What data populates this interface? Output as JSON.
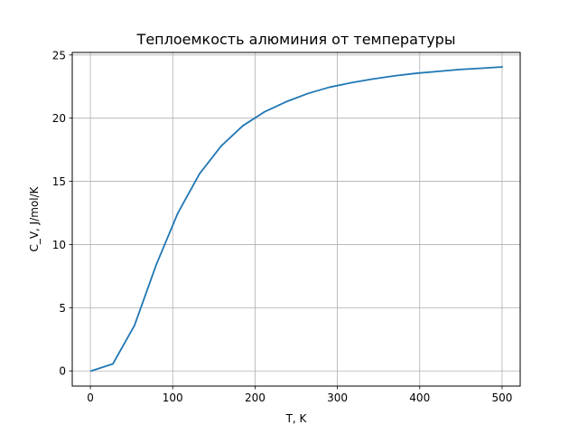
{
  "chart_data": {
    "type": "line",
    "title": "Теплоемкость алюминия от температуры",
    "xlabel": "T, K",
    "ylabel": "C_V, J/mol/K",
    "xlim": [
      -22,
      522
    ],
    "ylim": [
      -1.2,
      25.2
    ],
    "xticks": [
      0,
      100,
      200,
      300,
      400,
      500
    ],
    "yticks": [
      0,
      5,
      10,
      15,
      20,
      25
    ],
    "grid": true,
    "series": [
      {
        "color": "#1f77b4",
        "x": [
          1,
          27.3,
          53.6,
          80,
          106.3,
          132.6,
          158.9,
          185.2,
          211.5,
          237.8,
          264.1,
          290.4,
          316.7,
          343,
          369.3,
          395.6,
          421.9,
          448.2,
          474.5,
          500
        ],
        "y": [
          0.0,
          0.55,
          3.6,
          8.4,
          12.5,
          15.6,
          17.8,
          19.4,
          20.5,
          21.3,
          21.95,
          22.45,
          22.8,
          23.1,
          23.35,
          23.55,
          23.7,
          23.85,
          23.95,
          24.05
        ]
      }
    ]
  }
}
